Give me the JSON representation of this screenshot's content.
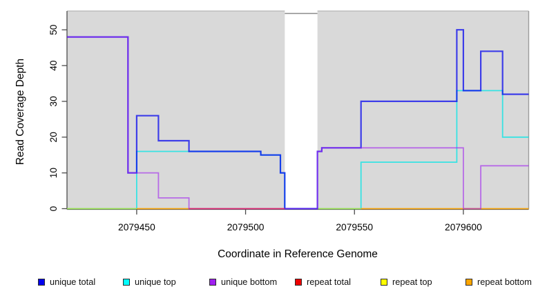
{
  "chart_data": {
    "type": "line",
    "subtype": "step-coverage-plot",
    "title": "",
    "xlabel": "Coordinate in Reference Genome",
    "ylabel": "Read Coverage Depth",
    "xlim": [
      2079418,
      2079630
    ],
    "ylim": [
      0,
      55
    ],
    "xticks": [
      2079450,
      2079500,
      2079550,
      2079600
    ],
    "yticks": [
      0,
      10,
      20,
      30,
      40,
      50
    ],
    "grid": false,
    "plot_background": "#D9D9D9",
    "masked_region": {
      "x_start": 2079518,
      "x_end": 2079533,
      "fill": "#FFFFFF"
    },
    "legend_position": "bottom",
    "legend": [
      {
        "label": "unique total",
        "color": "#0000EE"
      },
      {
        "label": "unique top",
        "color": "#00FFFF"
      },
      {
        "label": "unique bottom",
        "color": "#A020F0"
      },
      {
        "label": "repeat total",
        "color": "#EE0000"
      },
      {
        "label": "repeat top",
        "color": "#FFFF00"
      },
      {
        "label": "repeat bottom",
        "color": "#FFA500"
      }
    ],
    "series": [
      {
        "name": "unique top",
        "color": "#00E5E5",
        "opacity": 0.75,
        "width": 1.8,
        "segments": [
          {
            "points": [
              [
                2079418,
                0
              ],
              [
                2079450,
                16
              ],
              [
                2079507,
                15
              ],
              [
                2079516,
                10
              ],
              [
                2079518,
                0
              ],
              [
                2079553,
                13
              ],
              [
                2079597,
                33
              ],
              [
                2079618,
                20
              ]
            ],
            "end": 2079630
          }
        ]
      },
      {
        "name": "repeat top",
        "color": "#F0E800",
        "opacity": 0.6,
        "width": 1.8,
        "segments": [
          {
            "points": [
              [
                2079418,
                0
              ]
            ],
            "end": 2079450
          },
          {
            "points": [
              [
                2079533,
                0
              ]
            ],
            "end": 2079553
          }
        ]
      },
      {
        "name": "repeat bottom",
        "color": "#FFA500",
        "opacity": 0.9,
        "width": 1.8,
        "segments": [
          {
            "points": [
              [
                2079450,
                0
              ]
            ],
            "end": 2079474
          },
          {
            "points": [
              [
                2079553,
                0
              ]
            ],
            "end": 2079630
          }
        ]
      },
      {
        "name": "unique total",
        "color": "#0000EE",
        "opacity": 0.72,
        "width": 2.2,
        "segments": [
          {
            "points": [
              [
                2079418,
                48
              ],
              [
                2079446,
                10
              ],
              [
                2079450,
                26
              ],
              [
                2079460,
                19
              ],
              [
                2079474,
                16
              ],
              [
                2079507,
                15
              ],
              [
                2079516,
                10
              ],
              [
                2079518,
                0
              ],
              [
                2079533,
                16
              ],
              [
                2079535,
                17
              ],
              [
                2079553,
                30
              ],
              [
                2079597,
                50
              ],
              [
                2079600,
                33
              ],
              [
                2079608,
                44
              ],
              [
                2079618,
                32
              ]
            ],
            "end": 2079630
          }
        ]
      },
      {
        "name": "unique bottom",
        "color": "#A020F0",
        "opacity": 0.6,
        "width": 1.8,
        "segments": [
          {
            "points": [
              [
                2079418,
                48
              ],
              [
                2079446,
                10
              ],
              [
                2079460,
                3
              ],
              [
                2079474,
                0
              ],
              [
                2079533,
                16
              ],
              [
                2079535,
                17
              ],
              [
                2079600,
                0
              ],
              [
                2079608,
                12
              ]
            ],
            "end": 2079630
          }
        ]
      },
      {
        "name": "repeat total",
        "color": "#E8245A",
        "opacity": 0.8,
        "width": 1.8,
        "segments": [
          {
            "points": [
              [
                2079474,
                0
              ]
            ],
            "end": 2079518
          }
        ]
      }
    ]
  }
}
